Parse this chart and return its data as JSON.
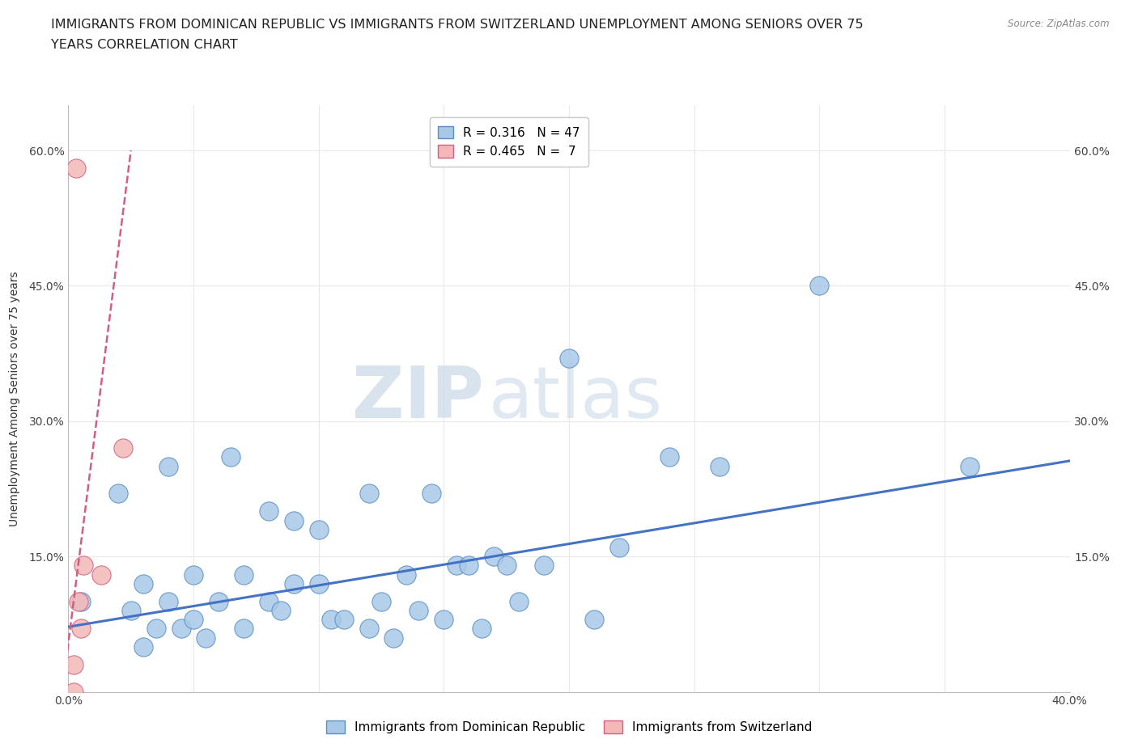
{
  "title_line1": "IMMIGRANTS FROM DOMINICAN REPUBLIC VS IMMIGRANTS FROM SWITZERLAND UNEMPLOYMENT AMONG SENIORS OVER 75",
  "title_line2": "YEARS CORRELATION CHART",
  "source": "Source: ZipAtlas.com",
  "ylabel": "Unemployment Among Seniors over 75 years",
  "xlim": [
    0.0,
    0.4
  ],
  "ylim": [
    0.0,
    0.65
  ],
  "xticks": [
    0.0,
    0.05,
    0.1,
    0.15,
    0.2,
    0.25,
    0.3,
    0.35,
    0.4
  ],
  "xticklabels_show": {
    "0.0": "0.0%",
    "0.4": "40.0%"
  },
  "yticks": [
    0.0,
    0.15,
    0.3,
    0.45,
    0.6
  ],
  "ytick_labels_left": [
    "",
    "15.0%",
    "30.0%",
    "45.0%",
    "60.0%"
  ],
  "ytick_labels_right": [
    "",
    "15.0%",
    "30.0%",
    "45.0%",
    "60.0%"
  ],
  "blue_R": 0.316,
  "blue_N": 47,
  "pink_R": 0.465,
  "pink_N": 7,
  "blue_color": "#a8c8e8",
  "pink_color": "#f4b8b8",
  "blue_edge_color": "#5a8fc0",
  "pink_edge_color": "#d06080",
  "blue_line_color": "#4472c4",
  "pink_line_color": "#d06080",
  "watermark_zip": "ZIP",
  "watermark_atlas": "atlas",
  "blue_scatter_x": [
    0.005,
    0.02,
    0.025,
    0.03,
    0.03,
    0.035,
    0.04,
    0.04,
    0.045,
    0.05,
    0.05,
    0.055,
    0.06,
    0.065,
    0.07,
    0.07,
    0.08,
    0.08,
    0.085,
    0.09,
    0.09,
    0.1,
    0.1,
    0.105,
    0.11,
    0.12,
    0.12,
    0.125,
    0.13,
    0.135,
    0.14,
    0.145,
    0.15,
    0.155,
    0.16,
    0.165,
    0.17,
    0.175,
    0.18,
    0.19,
    0.2,
    0.21,
    0.22,
    0.24,
    0.26,
    0.3,
    0.36
  ],
  "blue_scatter_y": [
    0.1,
    0.22,
    0.09,
    0.12,
    0.05,
    0.07,
    0.1,
    0.25,
    0.07,
    0.08,
    0.13,
    0.06,
    0.1,
    0.26,
    0.13,
    0.07,
    0.1,
    0.2,
    0.09,
    0.12,
    0.19,
    0.12,
    0.18,
    0.08,
    0.08,
    0.07,
    0.22,
    0.1,
    0.06,
    0.13,
    0.09,
    0.22,
    0.08,
    0.14,
    0.14,
    0.07,
    0.15,
    0.14,
    0.1,
    0.14,
    0.37,
    0.08,
    0.16,
    0.26,
    0.25,
    0.45,
    0.25
  ],
  "pink_scatter_x": [
    0.002,
    0.003,
    0.004,
    0.005,
    0.006,
    0.013,
    0.022
  ],
  "pink_scatter_y": [
    0.03,
    0.58,
    0.1,
    0.07,
    0.14,
    0.13,
    0.27
  ],
  "pink_scatter_extra_x": [
    0.002
  ],
  "pink_scatter_extra_y": [
    0.0
  ],
  "blue_trendline_x": [
    0.0,
    0.4
  ],
  "blue_trendline_y": [
    0.072,
    0.256
  ],
  "pink_trendline_x": [
    -0.002,
    0.025
  ],
  "pink_trendline_y": [
    0.01,
    0.6
  ],
  "scatter_size": 280,
  "background_color": "#ffffff",
  "grid_color": "#e8e8e8",
  "title_fontsize": 11.5,
  "tick_fontsize": 10,
  "legend_fontsize": 11,
  "axis_label_fontsize": 10
}
